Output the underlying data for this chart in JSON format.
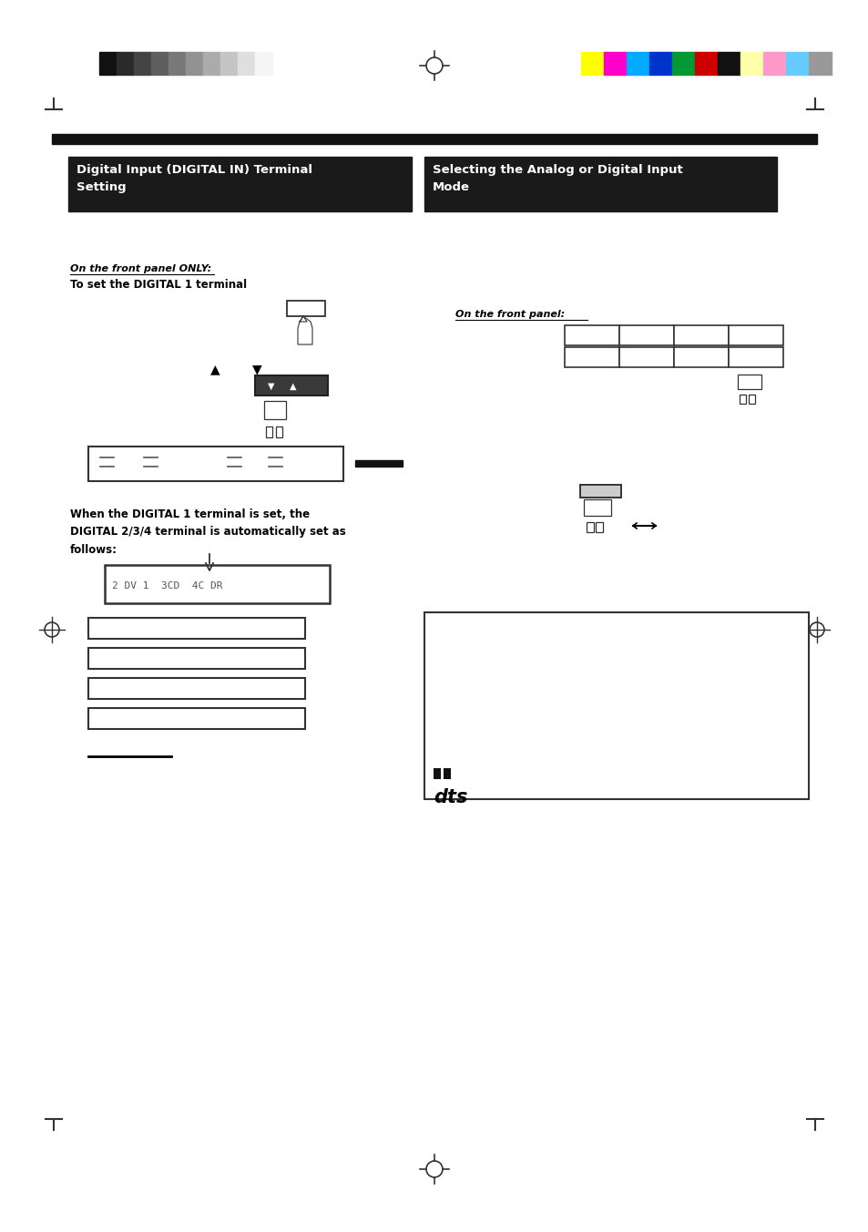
{
  "page_bg": "#ffffff",
  "grayscale_colors": [
    "#111111",
    "#2a2a2a",
    "#444444",
    "#5e5e5e",
    "#787878",
    "#929292",
    "#ababab",
    "#c5c5c5",
    "#dfdfdf",
    "#f5f5f5"
  ],
  "color_bars": [
    "#ffff00",
    "#ff00cc",
    "#00aaff",
    "#0033cc",
    "#009933",
    "#cc0000",
    "#111111",
    "#ffffaa",
    "#ff99cc",
    "#66ccff",
    "#999999"
  ],
  "section_bg": "#1a1a1a",
  "section_text_color": "#ffffff",
  "left_header": "Digital Input (DIGITAL IN) Terminal\nSetting",
  "right_header": "Selecting the Analog or Digital Input\nMode",
  "body_text": "When the DIGITAL 1 terminal is set, the\nDIGITAL 2/3/4 terminal is automatically set as\nfollows:"
}
